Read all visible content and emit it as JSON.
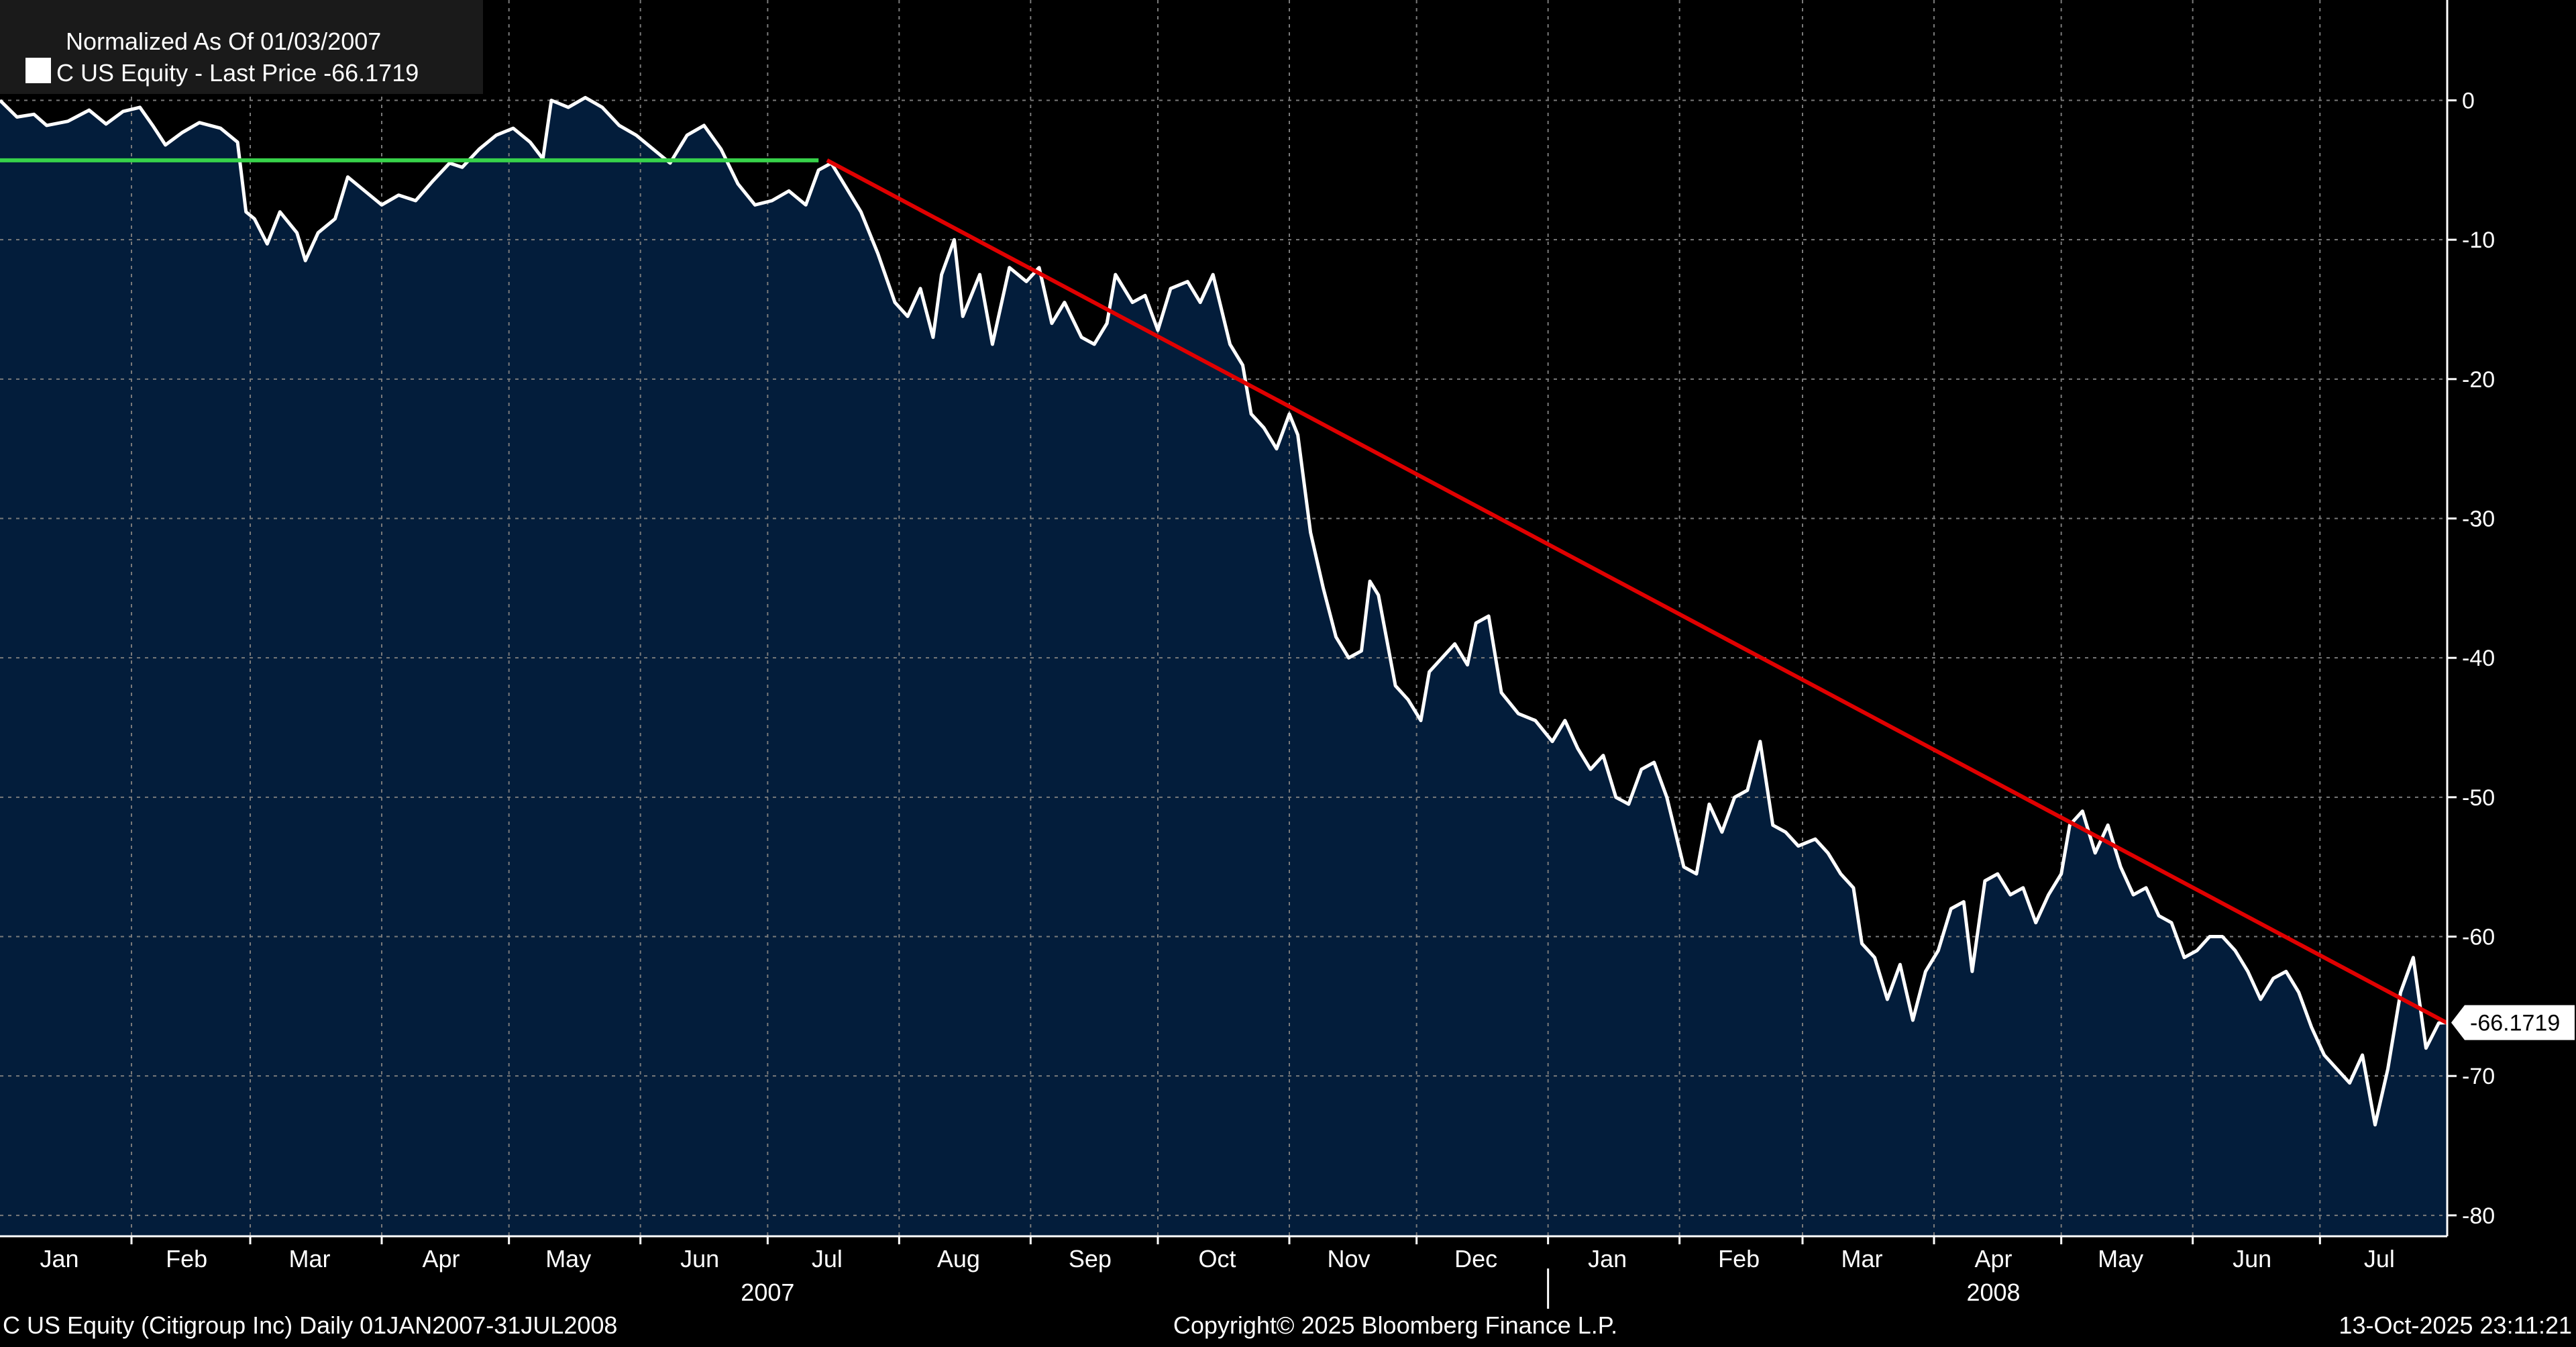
{
  "chart_data": {
    "type": "area",
    "legend": {
      "header": "Normalized As Of 01/03/2007",
      "series_label": "C US Equity - Last Price -66.1719",
      "placement": "top-left"
    },
    "y_axis": {
      "side": "right",
      "ticks": [
        0,
        -10,
        -20,
        -30,
        -40,
        -50,
        -60,
        -70,
        -80
      ],
      "tick_labels": [
        "0",
        "-10",
        "-20",
        "-30",
        "-40",
        "-50",
        "-60",
        "-70",
        "-80"
      ],
      "range": [
        -81.5,
        7.2
      ],
      "last_value_label": "-66.1719"
    },
    "x_axis": {
      "range": [
        "2007-01-01",
        "2008-07-31"
      ],
      "month_ticks": [
        {
          "date": "2007-01-15",
          "label": "Jan"
        },
        {
          "date": "2007-02-14",
          "label": "Feb"
        },
        {
          "date": "2007-03-15",
          "label": "Mar"
        },
        {
          "date": "2007-04-15",
          "label": "Apr"
        },
        {
          "date": "2007-05-15",
          "label": "May"
        },
        {
          "date": "2007-06-15",
          "label": "Jun"
        },
        {
          "date": "2007-07-15",
          "label": "Jul"
        },
        {
          "date": "2007-08-15",
          "label": "Aug"
        },
        {
          "date": "2007-09-15",
          "label": "Sep"
        },
        {
          "date": "2007-10-15",
          "label": "Oct"
        },
        {
          "date": "2007-11-15",
          "label": "Nov"
        },
        {
          "date": "2007-12-15",
          "label": "Dec"
        },
        {
          "date": "2008-01-15",
          "label": "Jan"
        },
        {
          "date": "2008-02-15",
          "label": "Feb"
        },
        {
          "date": "2008-03-15",
          "label": "Mar"
        },
        {
          "date": "2008-04-15",
          "label": "Apr"
        },
        {
          "date": "2008-05-15",
          "label": "May"
        },
        {
          "date": "2008-06-15",
          "label": "Jun"
        },
        {
          "date": "2008-07-15",
          "label": "Jul"
        }
      ],
      "gridlines": [
        "2007-02-01",
        "2007-03-01",
        "2007-04-01",
        "2007-05-01",
        "2007-06-01",
        "2007-07-01",
        "2007-08-01",
        "2007-09-01",
        "2007-10-01",
        "2007-11-01",
        "2007-12-01",
        "2008-01-01",
        "2008-02-01",
        "2008-03-01",
        "2008-04-01",
        "2008-05-01",
        "2008-06-01",
        "2008-07-01"
      ],
      "year_labels": [
        {
          "date": "2007-07-01",
          "label": "2007"
        },
        {
          "date": "2008-04-15",
          "label": "2008"
        }
      ],
      "year_divider": "2008-01-01"
    },
    "grid": true,
    "series": [
      {
        "color": "#ffffff",
        "fill": "#031d3b",
        "points": [
          [
            "2007-01-01",
            0
          ],
          [
            "2007-01-05",
            -1.2
          ],
          [
            "2007-01-09",
            -1.0
          ],
          [
            "2007-01-12",
            -1.8
          ],
          [
            "2007-01-17",
            -1.5
          ],
          [
            "2007-01-22",
            -0.7
          ],
          [
            "2007-01-26",
            -1.7
          ],
          [
            "2007-01-30",
            -0.8
          ],
          [
            "2007-02-03",
            -0.5
          ],
          [
            "2007-02-06",
            -1.8
          ],
          [
            "2007-02-09",
            -3.2
          ],
          [
            "2007-02-13",
            -2.3
          ],
          [
            "2007-02-17",
            -1.6
          ],
          [
            "2007-02-22",
            -2.0
          ],
          [
            "2007-02-26",
            -3.0
          ],
          [
            "2007-02-28",
            -8.0
          ],
          [
            "2007-03-02",
            -8.5
          ],
          [
            "2007-03-05",
            -10.3
          ],
          [
            "2007-03-08",
            -8.0
          ],
          [
            "2007-03-12",
            -9.5
          ],
          [
            "2007-03-14",
            -11.5
          ],
          [
            "2007-03-17",
            -9.5
          ],
          [
            "2007-03-21",
            -8.5
          ],
          [
            "2007-03-24",
            -5.5
          ],
          [
            "2007-03-28",
            -6.5
          ],
          [
            "2007-04-01",
            -7.5
          ],
          [
            "2007-04-05",
            -6.8
          ],
          [
            "2007-04-09",
            -7.2
          ],
          [
            "2007-04-13",
            -5.8
          ],
          [
            "2007-04-17",
            -4.5
          ],
          [
            "2007-04-20",
            -4.8
          ],
          [
            "2007-04-24",
            -3.5
          ],
          [
            "2007-04-28",
            -2.5
          ],
          [
            "2007-05-02",
            -2.0
          ],
          [
            "2007-05-06",
            -3.0
          ],
          [
            "2007-05-09",
            -4.2
          ],
          [
            "2007-05-11",
            0.0
          ],
          [
            "2007-05-15",
            -0.5
          ],
          [
            "2007-05-19",
            0.2
          ],
          [
            "2007-05-23",
            -0.5
          ],
          [
            "2007-05-27",
            -1.8
          ],
          [
            "2007-05-31",
            -2.5
          ],
          [
            "2007-06-04",
            -3.5
          ],
          [
            "2007-06-08",
            -4.5
          ],
          [
            "2007-06-12",
            -2.5
          ],
          [
            "2007-06-16",
            -1.8
          ],
          [
            "2007-06-20",
            -3.5
          ],
          [
            "2007-06-24",
            -6.0
          ],
          [
            "2007-06-28",
            -7.5
          ],
          [
            "2007-07-02",
            -7.2
          ],
          [
            "2007-07-06",
            -6.5
          ],
          [
            "2007-07-10",
            -7.5
          ],
          [
            "2007-07-13",
            -5.0
          ],
          [
            "2007-07-16",
            -4.5
          ],
          [
            "2007-07-19",
            -6.0
          ],
          [
            "2007-07-23",
            -8.0
          ],
          [
            "2007-07-27",
            -11.0
          ],
          [
            "2007-07-31",
            -14.5
          ],
          [
            "2007-08-03",
            -15.5
          ],
          [
            "2007-08-06",
            -13.5
          ],
          [
            "2007-08-09",
            -17.0
          ],
          [
            "2007-08-11",
            -12.5
          ],
          [
            "2007-08-14",
            -10.0
          ],
          [
            "2007-08-16",
            -15.5
          ],
          [
            "2007-08-20",
            -12.5
          ],
          [
            "2007-08-23",
            -17.5
          ],
          [
            "2007-08-27",
            -12.0
          ],
          [
            "2007-08-31",
            -13.0
          ],
          [
            "2007-09-03",
            -12.0
          ],
          [
            "2007-09-06",
            -16.0
          ],
          [
            "2007-09-09",
            -14.5
          ],
          [
            "2007-09-13",
            -17.0
          ],
          [
            "2007-09-16",
            -17.5
          ],
          [
            "2007-09-19",
            -16.0
          ],
          [
            "2007-09-21",
            -12.5
          ],
          [
            "2007-09-25",
            -14.5
          ],
          [
            "2007-09-28",
            -14.0
          ],
          [
            "2007-10-01",
            -16.5
          ],
          [
            "2007-10-04",
            -13.5
          ],
          [
            "2007-10-08",
            -13.0
          ],
          [
            "2007-10-11",
            -14.5
          ],
          [
            "2007-10-14",
            -12.5
          ],
          [
            "2007-10-18",
            -17.5
          ],
          [
            "2007-10-21",
            -19.0
          ],
          [
            "2007-10-23",
            -22.5
          ],
          [
            "2007-10-26",
            -23.5
          ],
          [
            "2007-10-29",
            -25.0
          ],
          [
            "2007-11-01",
            -22.5
          ],
          [
            "2007-11-03",
            -24.0
          ],
          [
            "2007-11-06",
            -31.0
          ],
          [
            "2007-11-09",
            -35.0
          ],
          [
            "2007-11-12",
            -38.5
          ],
          [
            "2007-11-15",
            -40.0
          ],
          [
            "2007-11-18",
            -39.5
          ],
          [
            "2007-11-20",
            -34.5
          ],
          [
            "2007-11-22",
            -35.5
          ],
          [
            "2007-11-26",
            -42.0
          ],
          [
            "2007-11-29",
            -43.0
          ],
          [
            "2007-12-02",
            -44.5
          ],
          [
            "2007-12-04",
            -41.0
          ],
          [
            "2007-12-07",
            -40.0
          ],
          [
            "2007-12-10",
            -39.0
          ],
          [
            "2007-12-13",
            -40.5
          ],
          [
            "2007-12-15",
            -37.5
          ],
          [
            "2007-12-18",
            -37.0
          ],
          [
            "2007-12-21",
            -42.5
          ],
          [
            "2007-12-25",
            -44.0
          ],
          [
            "2007-12-29",
            -44.5
          ],
          [
            "2008-01-02",
            -46.0
          ],
          [
            "2008-01-05",
            -44.5
          ],
          [
            "2008-01-08",
            -46.5
          ],
          [
            "2008-01-11",
            -48.0
          ],
          [
            "2008-01-14",
            -47.0
          ],
          [
            "2008-01-17",
            -50.0
          ],
          [
            "2008-01-20",
            -50.5
          ],
          [
            "2008-01-23",
            -48.0
          ],
          [
            "2008-01-26",
            -47.5
          ],
          [
            "2008-01-29",
            -50.0
          ],
          [
            "2008-02-02",
            -55.0
          ],
          [
            "2008-02-05",
            -55.5
          ],
          [
            "2008-02-08",
            -50.5
          ],
          [
            "2008-02-11",
            -52.5
          ],
          [
            "2008-02-14",
            -50.0
          ],
          [
            "2008-02-17",
            -49.5
          ],
          [
            "2008-02-20",
            -46.0
          ],
          [
            "2008-02-23",
            -52.0
          ],
          [
            "2008-02-26",
            -52.5
          ],
          [
            "2008-02-29",
            -53.5
          ],
          [
            "2008-03-04",
            -53.0
          ],
          [
            "2008-03-07",
            -54.0
          ],
          [
            "2008-03-10",
            -55.5
          ],
          [
            "2008-03-13",
            -56.5
          ],
          [
            "2008-03-15",
            -60.5
          ],
          [
            "2008-03-18",
            -61.5
          ],
          [
            "2008-03-21",
            -64.5
          ],
          [
            "2008-03-24",
            -62.0
          ],
          [
            "2008-03-27",
            -66.0
          ],
          [
            "2008-03-30",
            -62.5
          ],
          [
            "2008-04-02",
            -61.0
          ],
          [
            "2008-04-05",
            -58.0
          ],
          [
            "2008-04-08",
            -57.5
          ],
          [
            "2008-04-10",
            -62.5
          ],
          [
            "2008-04-13",
            -56.0
          ],
          [
            "2008-04-16",
            -55.5
          ],
          [
            "2008-04-19",
            -57.0
          ],
          [
            "2008-04-22",
            -56.5
          ],
          [
            "2008-04-25",
            -59.0
          ],
          [
            "2008-04-28",
            -57.0
          ],
          [
            "2008-05-01",
            -55.5
          ],
          [
            "2008-05-03",
            -52.0
          ],
          [
            "2008-05-06",
            -51.0
          ],
          [
            "2008-05-09",
            -54.0
          ],
          [
            "2008-05-12",
            -52.0
          ],
          [
            "2008-05-15",
            -55.0
          ],
          [
            "2008-05-18",
            -57.0
          ],
          [
            "2008-05-21",
            -56.5
          ],
          [
            "2008-05-24",
            -58.5
          ],
          [
            "2008-05-27",
            -59.0
          ],
          [
            "2008-05-30",
            -61.5
          ],
          [
            "2008-06-02",
            -61.0
          ],
          [
            "2008-06-05",
            -60.0
          ],
          [
            "2008-06-08",
            -60.0
          ],
          [
            "2008-06-11",
            -61.0
          ],
          [
            "2008-06-14",
            -62.5
          ],
          [
            "2008-06-17",
            -64.5
          ],
          [
            "2008-06-20",
            -63.0
          ],
          [
            "2008-06-23",
            -62.5
          ],
          [
            "2008-06-26",
            -64.0
          ],
          [
            "2008-06-29",
            -66.5
          ],
          [
            "2008-07-02",
            -68.5
          ],
          [
            "2008-07-05",
            -69.5
          ],
          [
            "2008-07-08",
            -70.5
          ],
          [
            "2008-07-11",
            -68.5
          ],
          [
            "2008-07-14",
            -73.5
          ],
          [
            "2008-07-17",
            -69.5
          ],
          [
            "2008-07-20",
            -64.0
          ],
          [
            "2008-07-23",
            -61.5
          ],
          [
            "2008-07-26",
            -68.0
          ],
          [
            "2008-07-29",
            -66.2
          ],
          [
            "2008-07-31",
            -66.17
          ]
        ]
      }
    ],
    "annotations": [
      {
        "kind": "horizontal-line",
        "color": "#37d24a",
        "from": "2007-01-01",
        "to": "2007-07-13",
        "value": -4.3
      },
      {
        "kind": "trend-line",
        "color": "#e00000",
        "from": [
          "2007-07-15",
          -4.3
        ],
        "to": [
          "2008-07-31",
          -66.2
        ]
      }
    ]
  },
  "footer": {
    "left": "C US Equity (Citigroup Inc) Daily 01JAN2007-31JUL2008",
    "center": "Copyright© 2025 Bloomberg Finance L.P.",
    "right": "13-Oct-2025 23:11:21"
  }
}
